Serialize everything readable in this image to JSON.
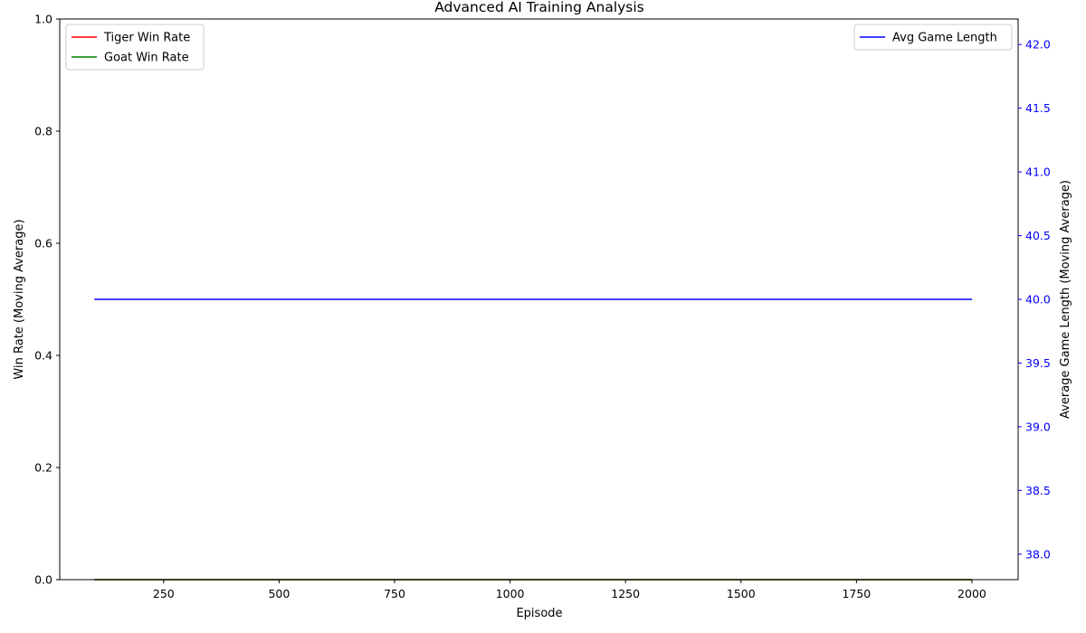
{
  "chart_data": {
    "type": "line",
    "title": "Advanced AI Training Analysis",
    "xlabel": "Episode",
    "ylabel_left": "Win Rate (Moving Average)",
    "ylabel_right": "Average Game Length (Moving Average)",
    "xlim": [
      25,
      2100
    ],
    "ylim_left": [
      0.0,
      1.0
    ],
    "ylim_right": [
      37.8,
      42.2
    ],
    "x_ticks": [
      250,
      500,
      750,
      1000,
      1250,
      1500,
      1750,
      2000
    ],
    "x_tick_labels": [
      "250",
      "500",
      "750",
      "1000",
      "1250",
      "1500",
      "1750",
      "2000"
    ],
    "y_left_ticks": [
      0.0,
      0.2,
      0.4,
      0.6,
      0.8,
      1.0
    ],
    "y_left_tick_labels": [
      "0.0",
      "0.2",
      "0.4",
      "0.6",
      "0.8",
      "1.0"
    ],
    "y_right_ticks": [
      38.0,
      38.5,
      39.0,
      39.5,
      40.0,
      40.5,
      41.0,
      41.5,
      42.0
    ],
    "y_right_tick_labels": [
      "38.0",
      "38.5",
      "39.0",
      "39.5",
      "40.0",
      "40.5",
      "41.0",
      "41.5",
      "42.0"
    ],
    "grid": false,
    "series": [
      {
        "name": "Tiger Win Rate",
        "axis": "left",
        "color": "#ff0000",
        "x": [
          100,
          2000
        ],
        "y": [
          0.0,
          0.0
        ]
      },
      {
        "name": "Goat Win Rate",
        "axis": "left",
        "color": "#008000",
        "x": [
          100,
          2000
        ],
        "y": [
          0.0,
          0.0
        ]
      },
      {
        "name": "Avg Game Length",
        "axis": "right",
        "color": "#0000ff",
        "x": [
          100,
          2000
        ],
        "y": [
          40.0,
          40.0
        ]
      }
    ],
    "legends": [
      {
        "placement": "top-left",
        "entries": [
          "Tiger Win Rate",
          "Goat Win Rate"
        ]
      },
      {
        "placement": "top-right",
        "entries": [
          "Avg Game Length"
        ]
      }
    ],
    "right_axis_color": "#0000ff"
  }
}
